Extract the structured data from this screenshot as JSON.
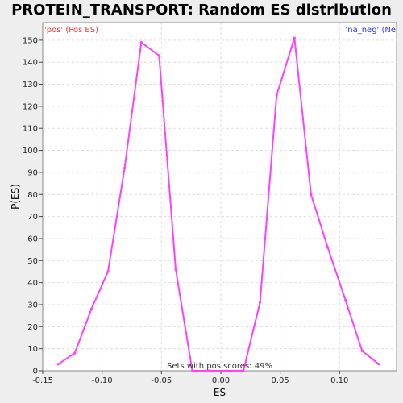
{
  "chart_data": {
    "type": "line",
    "title": "PROTEIN_TRANSPORT: Random ES distribution",
    "xlabel": "ES",
    "ylabel": "P(ES)",
    "xlim": [
      -0.15,
      0.148
    ],
    "ylim": [
      0,
      158
    ],
    "x_ticks": [
      "-0.15",
      "-0.10",
      "-0.05",
      "0.00",
      "0.05",
      "0.10"
    ],
    "y_ticks": [
      "0",
      "10",
      "20",
      "30",
      "40",
      "50",
      "60",
      "70",
      "80",
      "90",
      "100",
      "110",
      "120",
      "130",
      "140",
      "150"
    ],
    "grid": true,
    "legend_pos_label": "'pos' (Pos ES)",
    "legend_neg_label": "'na_neg' (Ne",
    "annotation": "Sets with pos scores: 49%",
    "line_color": "#ff40ff",
    "series": [
      {
        "x": [
          -0.137,
          -0.123,
          -0.109,
          -0.095,
          -0.081,
          -0.067,
          -0.052,
          -0.038,
          -0.024,
          -0.01,
          0.005,
          0.019,
          0.033,
          0.047,
          0.062,
          0.076,
          0.09,
          0.105,
          0.119,
          0.133
        ],
        "y": [
          3,
          8,
          28,
          45,
          92,
          149,
          143,
          46,
          0,
          0,
          0,
          0,
          31,
          125,
          151,
          80,
          56,
          32,
          9,
          3
        ]
      }
    ]
  }
}
